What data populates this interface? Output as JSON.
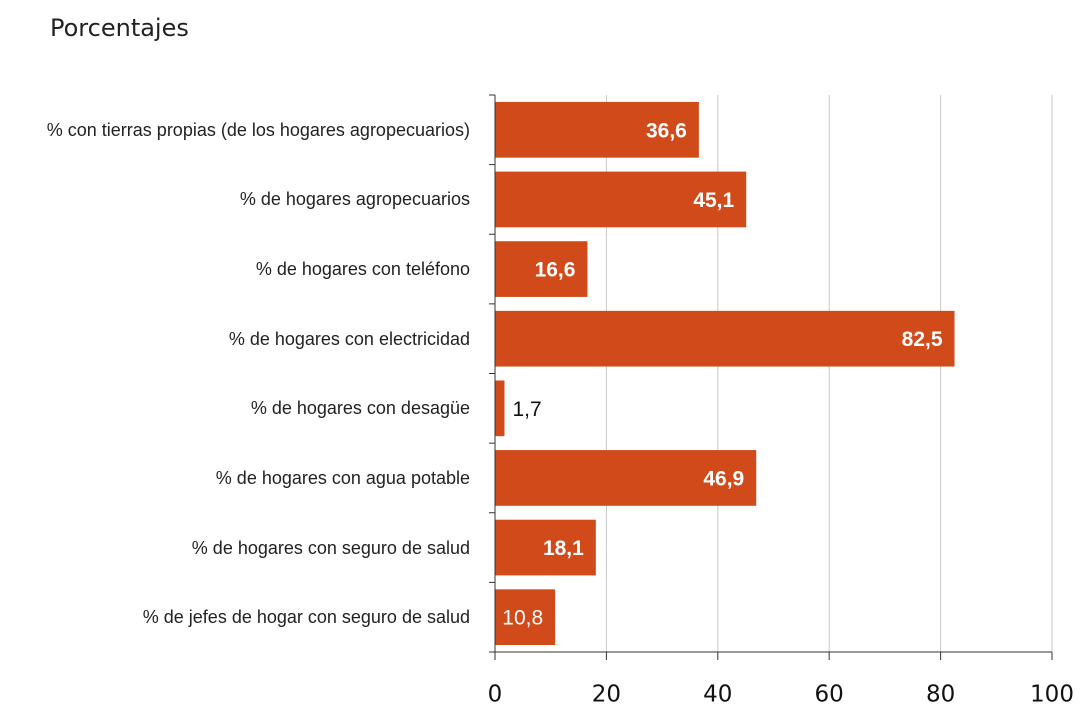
{
  "chart_data": {
    "type": "bar",
    "orientation": "horizontal",
    "title": "Porcentajes",
    "categories": [
      "% con tierras propias (de los hogares agropecuarios)",
      "% de hogares agropecuarios",
      "% de hogares con teléfono",
      "% de hogares con electricidad",
      "% de hogares con desagüe",
      "% de hogares con agua potable",
      "% de hogares con seguro de salud",
      "% de jefes de hogar con seguro de salud"
    ],
    "values": [
      36.6,
      45.1,
      16.6,
      82.5,
      1.7,
      46.9,
      18.1,
      10.8
    ],
    "value_labels": [
      "36,6",
      "45,1",
      "16,6",
      "82,5",
      "1,7",
      "46,9",
      "18,1",
      "10,8"
    ],
    "color": "#d04a1a",
    "xlim": [
      0,
      100
    ],
    "xticks": [
      0,
      20,
      40,
      60,
      80,
      100
    ],
    "grid": true
  }
}
